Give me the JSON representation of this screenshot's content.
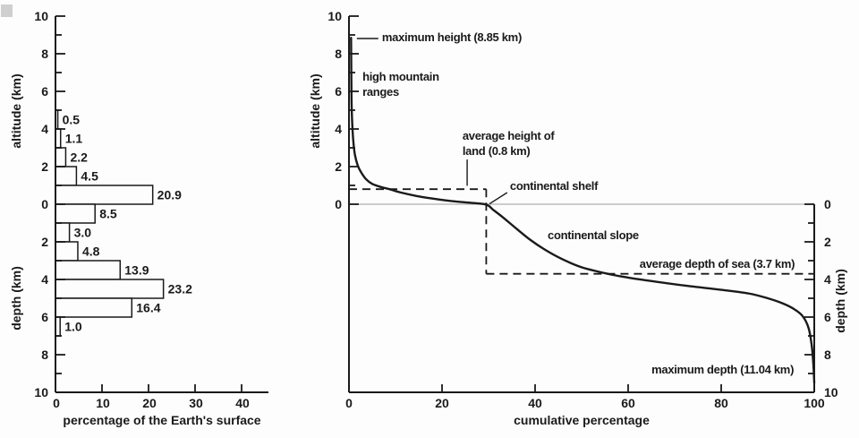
{
  "palette": {
    "ink": "#1a1a1a",
    "background": "#fdfdfd",
    "sea_line_gray": "#b0b0b0"
  },
  "chart_data": [
    {
      "type": "bar",
      "name": "altitude-depth-distribution-bar-chart",
      "xlabel": "percentage of the Earth's surface",
      "ylabel_altitude": "altitude (km)",
      "ylabel_depth": "depth (km)",
      "xlim": [
        0,
        45
      ],
      "x_ticks": [
        0,
        10,
        20,
        30,
        40
      ],
      "ylim_km": [
        -10,
        10
      ],
      "altitude_tick_labels": [
        "10",
        "8",
        "6",
        "4",
        "2",
        "0"
      ],
      "depth_tick_labels": [
        "2",
        "4",
        "6",
        "8",
        "10"
      ],
      "bars": [
        {
          "top_km": 5,
          "bottom_km": 4,
          "value": 0.5,
          "label": "0.5"
        },
        {
          "top_km": 4,
          "bottom_km": 3,
          "value": 1.1,
          "label": "1.1"
        },
        {
          "top_km": 3,
          "bottom_km": 2,
          "value": 2.2,
          "label": "2.2"
        },
        {
          "top_km": 2,
          "bottom_km": 1,
          "value": 4.5,
          "label": "4.5"
        },
        {
          "top_km": 1,
          "bottom_km": 0,
          "value": 20.9,
          "label": "20.9"
        },
        {
          "top_km": 0,
          "bottom_km": -1,
          "value": 8.5,
          "label": "8.5"
        },
        {
          "top_km": -1,
          "bottom_km": -2,
          "value": 3.0,
          "label": "3.0"
        },
        {
          "top_km": -2,
          "bottom_km": -3,
          "value": 4.8,
          "label": "4.8"
        },
        {
          "top_km": -3,
          "bottom_km": -4,
          "value": 13.9,
          "label": "13.9"
        },
        {
          "top_km": -4,
          "bottom_km": -5,
          "value": 23.2,
          "label": "23.2"
        },
        {
          "top_km": -5,
          "bottom_km": -6,
          "value": 16.4,
          "label": "16.4"
        },
        {
          "top_km": -6,
          "bottom_km": -7,
          "value": 1.0,
          "label": "1.0"
        }
      ]
    },
    {
      "type": "line",
      "name": "hypsographic-cumulative-curve",
      "xlabel": "cumulative percentage",
      "ylabel_altitude": "altitude (km)",
      "ylabel_depth": "depth (km)",
      "xlim": [
        0,
        100
      ],
      "x_ticks": [
        0,
        20,
        40,
        60,
        80,
        100
      ],
      "ylim_km": [
        -10,
        10
      ],
      "altitude_tick_labels": [
        "10",
        "8",
        "6",
        "4",
        "2",
        "0"
      ],
      "depth_tick_labels": [
        "0",
        "2",
        "4",
        "6",
        "8",
        "10"
      ],
      "sea_level_km": 0,
      "curve_points_pct_km": [
        [
          0.45,
          8.85
        ],
        [
          0.5,
          7.0
        ],
        [
          0.55,
          5.5
        ],
        [
          0.7,
          4.3
        ],
        [
          0.95,
          3.3
        ],
        [
          1.3,
          2.6
        ],
        [
          1.9,
          2.05
        ],
        [
          2.6,
          1.7
        ],
        [
          3.6,
          1.35
        ],
        [
          5.0,
          1.08
        ],
        [
          6.8,
          0.92
        ],
        [
          8.7,
          0.8
        ],
        [
          11.0,
          0.63
        ],
        [
          14.5,
          0.44
        ],
        [
          18.0,
          0.3
        ],
        [
          22.0,
          0.17
        ],
        [
          26.0,
          0.08
        ],
        [
          29.5,
          -0.02
        ],
        [
          31.0,
          -0.3
        ],
        [
          33.0,
          -0.68
        ],
        [
          36.0,
          -1.3
        ],
        [
          39.0,
          -1.9
        ],
        [
          42.0,
          -2.4
        ],
        [
          45.5,
          -2.88
        ],
        [
          50.0,
          -3.35
        ],
        [
          56.0,
          -3.72
        ],
        [
          60.0,
          -3.9
        ],
        [
          64.0,
          -4.05
        ],
        [
          72.0,
          -4.32
        ],
        [
          80.0,
          -4.55
        ],
        [
          86.0,
          -4.75
        ],
        [
          90.0,
          -5.0
        ],
        [
          93.0,
          -5.25
        ],
        [
          95.5,
          -5.55
        ],
        [
          97.5,
          -5.95
        ],
        [
          98.8,
          -6.6
        ],
        [
          99.5,
          -7.6
        ],
        [
          99.85,
          -8.7
        ],
        [
          100.0,
          -9.5
        ]
      ],
      "reference": {
        "avg_land_height_km": 0.8,
        "avg_sea_depth_km": 3.7,
        "shelf_edge_pct": 29.5
      },
      "annotations": [
        {
          "lines": [
            "maximum height (8.85 km)"
          ],
          "x_pct": 7.1,
          "y_km": 8.85,
          "anchor": "start",
          "leader": [
            [
              1.7,
              8.81
            ],
            [
              6.3,
              8.81
            ]
          ]
        },
        {
          "lines": [
            "high mountain",
            "ranges"
          ],
          "x_pct": 2.9,
          "y_km": 6.76,
          "anchor": "start",
          "leader": null
        },
        {
          "lines": [
            "average height of",
            "land (0.8 km)"
          ],
          "x_pct": 24.4,
          "y_km": 3.62,
          "anchor": "start",
          "leader": [
            [
              25.4,
              2.38
            ],
            [
              25.4,
              0.98
            ]
          ]
        },
        {
          "lines": [
            "continental shelf"
          ],
          "x_pct": 34.6,
          "y_km": 0.95,
          "anchor": "start",
          "leader": [
            [
              34.0,
              0.62
            ],
            [
              30.2,
              0.02
            ]
          ]
        },
        {
          "lines": [
            "continental slope"
          ],
          "x_pct": 42.7,
          "y_km": -1.67,
          "anchor": "start",
          "leader": null
        },
        {
          "lines": [
            "average depth of sea (3.7 km)"
          ],
          "x_pct": 95.8,
          "y_km": -3.19,
          "anchor": "end",
          "leader": null
        },
        {
          "lines": [
            "maximum depth (11.04 km)"
          ],
          "x_pct": 95.6,
          "y_km": -8.81,
          "anchor": "end",
          "leader": null
        }
      ]
    }
  ]
}
